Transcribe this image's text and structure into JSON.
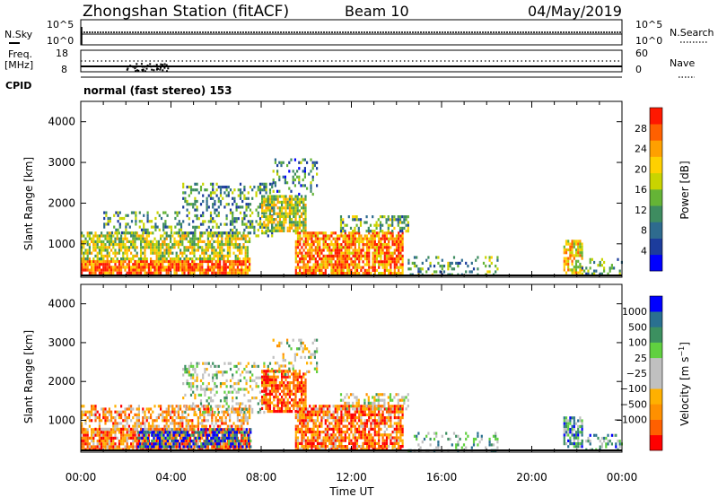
{
  "header": {
    "station": "Zhongshan Station (fitACF)",
    "beam": "Beam 10",
    "date": "04/May/2019"
  },
  "strip_panels": {
    "nsky_label": "N.Sky",
    "nsky_ticks": [
      "10^5",
      "10^0"
    ],
    "nsearch_label": "N.Search",
    "nsearch_ticks": [
      "10^5",
      "10^0"
    ],
    "freq_label_line1": "Freq.",
    "freq_label_line2": "[MHz]",
    "freq_ticks": [
      "18",
      "8"
    ],
    "nave_label": "Nave",
    "nave_ticks": [
      "60",
      "0"
    ],
    "cpid_label": "CPID",
    "cpid_text": "normal (fast stereo) 153"
  },
  "chart_data": [
    {
      "type": "heatmap",
      "name_printed": "Power [dB]",
      "ylabel": "Slant Range [km]",
      "xlabel": "Time UT",
      "x_ticks": [
        "00:00",
        "04:00",
        "08:00",
        "12:00",
        "16:00",
        "20:00",
        "00:00"
      ],
      "xlim_hours": [
        0,
        24
      ],
      "ylim_km": [
        180,
        4500
      ],
      "y_ticks": [
        1000,
        2000,
        3000,
        4000
      ],
      "colorbar": {
        "label": "Power [dB]",
        "range": [
          0,
          32
        ],
        "tick_labels": [
          "4",
          "8",
          "12",
          "16",
          "20",
          "24",
          "28"
        ],
        "colors": [
          "#0000ff",
          "#1c3c9c",
          "#2e6b8e",
          "#3e8c60",
          "#65b436",
          "#c9d400",
          "#ffd000",
          "#ffa000",
          "#ff6000",
          "#ff1800"
        ]
      },
      "regions": [
        {
          "t0": 0.0,
          "t1": 7.5,
          "r0": 250,
          "r1": 600,
          "level": 0.85,
          "density": 0.85
        },
        {
          "t0": 0.0,
          "t1": 7.5,
          "r0": 600,
          "r1": 1300,
          "level": 0.55,
          "density": 0.7
        },
        {
          "t0": 1.0,
          "t1": 4.5,
          "r0": 1300,
          "r1": 1800,
          "level": 0.35,
          "density": 0.35
        },
        {
          "t0": 4.5,
          "t1": 8.5,
          "r0": 1200,
          "r1": 2500,
          "level": 0.35,
          "density": 0.35
        },
        {
          "t0": 8.0,
          "t1": 10.0,
          "r0": 1300,
          "r1": 2200,
          "level": 0.55,
          "density": 0.75
        },
        {
          "t0": 8.5,
          "t1": 10.5,
          "r0": 2200,
          "r1": 3100,
          "level": 0.3,
          "density": 0.25
        },
        {
          "t0": 9.5,
          "t1": 14.3,
          "r0": 250,
          "r1": 1300,
          "level": 0.8,
          "density": 0.8
        },
        {
          "t0": 11.5,
          "t1": 14.5,
          "r0": 1300,
          "r1": 1700,
          "level": 0.4,
          "density": 0.4
        },
        {
          "t0": 14.5,
          "t1": 18.5,
          "r0": 250,
          "r1": 700,
          "level": 0.4,
          "density": 0.25
        },
        {
          "t0": 21.4,
          "t1": 22.2,
          "r0": 300,
          "r1": 1100,
          "level": 0.65,
          "density": 0.7
        },
        {
          "t0": 22.2,
          "t1": 24.0,
          "r0": 250,
          "r1": 650,
          "level": 0.35,
          "density": 0.3
        }
      ]
    },
    {
      "type": "heatmap",
      "name_printed": "Velocity [m s^-1]",
      "ylabel": "Slant Range [km]",
      "xlabel": "Time UT",
      "x_ticks": [
        "00:00",
        "04:00",
        "08:00",
        "12:00",
        "16:00",
        "20:00",
        "00:00"
      ],
      "xlim_hours": [
        0,
        24
      ],
      "ylim_km": [
        180,
        4500
      ],
      "y_ticks": [
        1000,
        2000,
        3000,
        4000
      ],
      "colorbar": {
        "label": "Velocity [m s^-1]",
        "range": [
          -1200,
          1200
        ],
        "tick_labels": [
          "1000",
          "500",
          "100",
          "25",
          "−25",
          "−100",
          "−500",
          "−1000"
        ],
        "colors": [
          "#ff0000",
          "#ff6000",
          "#ff9000",
          "#ffb000",
          "#c0c0c0",
          "#c0c0c0",
          "#60d040",
          "#3c9060",
          "#2a7090",
          "#0000ff"
        ]
      },
      "regions": [
        {
          "t0": 0.0,
          "t1": 7.5,
          "r0": 250,
          "r1": 800,
          "level": 0.2,
          "density": 0.85
        },
        {
          "t0": 2.5,
          "t1": 7.5,
          "r0": 350,
          "r1": 800,
          "level": 0.9,
          "density": 0.6
        },
        {
          "t0": 0.0,
          "t1": 7.5,
          "r0": 800,
          "r1": 1400,
          "level": 0.3,
          "density": 0.55
        },
        {
          "t0": 4.5,
          "t1": 8.5,
          "r0": 1200,
          "r1": 2500,
          "level": 0.55,
          "density": 0.3
        },
        {
          "t0": 8.0,
          "t1": 10.0,
          "r0": 1200,
          "r1": 2300,
          "level": 0.15,
          "density": 0.75
        },
        {
          "t0": 8.5,
          "t1": 10.5,
          "r0": 2200,
          "r1": 3100,
          "level": 0.5,
          "density": 0.25
        },
        {
          "t0": 9.5,
          "t1": 14.3,
          "r0": 250,
          "r1": 1400,
          "level": 0.2,
          "density": 0.8
        },
        {
          "t0": 11.5,
          "t1": 14.5,
          "r0": 1300,
          "r1": 1700,
          "level": 0.5,
          "density": 0.4
        },
        {
          "t0": 14.5,
          "t1": 18.5,
          "r0": 250,
          "r1": 700,
          "level": 0.65,
          "density": 0.25
        },
        {
          "t0": 21.4,
          "t1": 22.2,
          "r0": 300,
          "r1": 1100,
          "level": 0.75,
          "density": 0.7
        },
        {
          "t0": 22.2,
          "t1": 24.0,
          "r0": 250,
          "r1": 650,
          "level": 0.7,
          "density": 0.3
        }
      ]
    }
  ]
}
